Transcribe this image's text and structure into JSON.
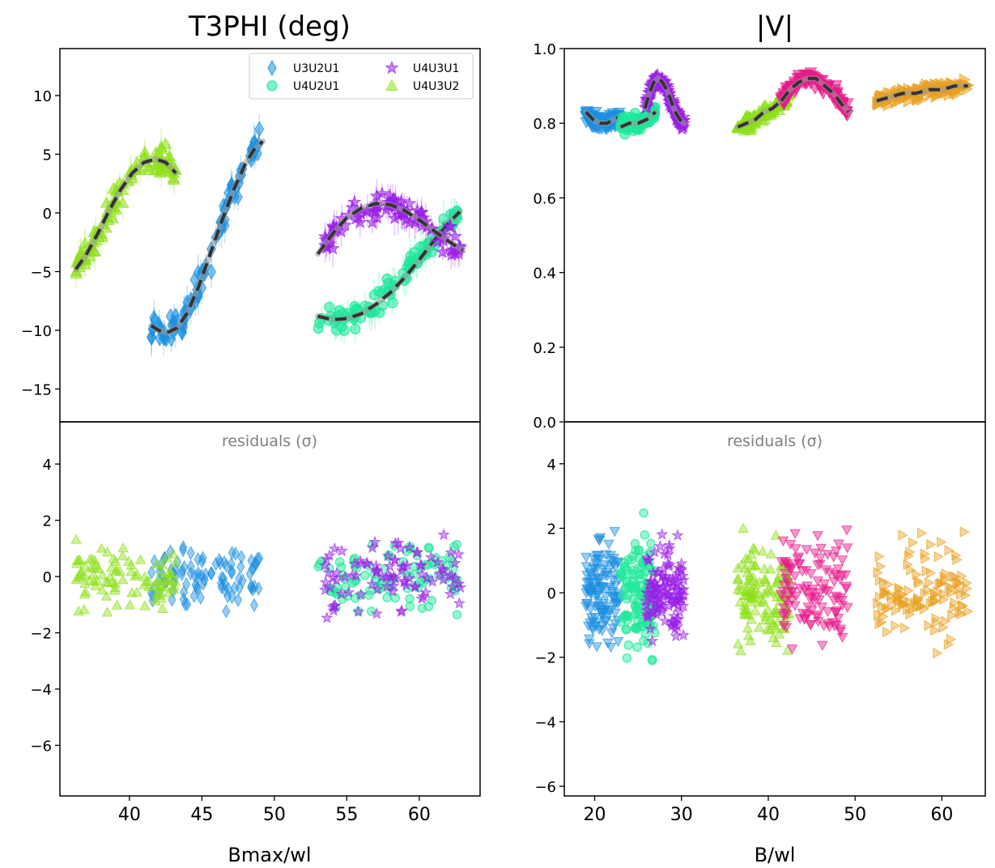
{
  "chart_data": [
    {
      "type": "scatter",
      "title": "T3PHI (deg)",
      "xlabel": "Bmax/wl",
      "ylabel": "",
      "xlim": [
        35.2,
        64.2
      ],
      "ylim": [
        -17.8,
        14.0
      ],
      "y_ticks": [
        "10",
        "5",
        "0",
        "−5",
        "−10",
        "−15"
      ],
      "legend_position": "top-right",
      "grid": false,
      "series": [
        {
          "name": "U3U2U1",
          "marker": "diamond",
          "color": "#1b8fe0",
          "x": [
            42.5,
            44.0,
            45.5,
            47.0,
            48.5,
            49.2
          ],
          "y": [
            -9.0,
            -9.0,
            -3.0,
            2.0,
            5.0,
            6.0
          ],
          "model_x": [
            41.5,
            42.0,
            42.6,
            43.3,
            44.0,
            44.8,
            45.6,
            46.4,
            47.2,
            48.0,
            48.6,
            49.2
          ],
          "model_y": [
            -9.6,
            -10.0,
            -10.2,
            -9.8,
            -8.5,
            -6.2,
            -3.4,
            -0.6,
            2.0,
            4.2,
            5.4,
            6.1
          ]
        },
        {
          "name": "U4U2U1",
          "marker": "circle",
          "color": "#1ee89a",
          "x": [
            53.0,
            55.0,
            57.0,
            59.0,
            61.0,
            62.8
          ],
          "y": [
            -9.0,
            -9.5,
            -8.0,
            -6.0,
            -2.0,
            0.0
          ],
          "model_x": [
            53.0,
            54.0,
            55.0,
            56.0,
            57.0,
            58.0,
            59.0,
            60.0,
            61.0,
            62.0,
            62.8
          ],
          "model_y": [
            -8.8,
            -9.1,
            -9.0,
            -8.6,
            -7.8,
            -6.8,
            -5.5,
            -4.0,
            -2.4,
            -0.9,
            0.1
          ]
        },
        {
          "name": "U4U3U1",
          "marker": "star",
          "color": "#9a1fe6",
          "x": [
            53.0,
            55.0,
            57.0,
            59.0,
            61.0,
            63.0
          ],
          "y": [
            -4.0,
            -1.0,
            1.0,
            0.0,
            -2.0,
            -3.0
          ],
          "model_x": [
            53.0,
            54.0,
            55.0,
            56.0,
            57.0,
            58.0,
            59.0,
            60.0,
            61.0,
            62.0,
            63.0
          ],
          "model_y": [
            -3.5,
            -1.8,
            -0.4,
            0.4,
            0.8,
            0.7,
            0.2,
            -0.6,
            -1.5,
            -2.4,
            -3.2
          ]
        },
        {
          "name": "U4U3U2",
          "marker": "triangle-up",
          "color": "#8fe01a",
          "x": [
            36.5,
            38.0,
            39.5,
            41.0,
            42.5,
            43.5
          ],
          "y": [
            -5.0,
            -1.0,
            3.0,
            4.5,
            4.0,
            3.5
          ],
          "model_x": [
            36.3,
            37.0,
            37.8,
            38.6,
            39.4,
            40.2,
            41.0,
            41.8,
            42.5,
            43.2
          ],
          "model_y": [
            -4.8,
            -3.6,
            -1.8,
            0.2,
            2.0,
            3.4,
            4.3,
            4.6,
            4.3,
            3.4
          ]
        }
      ],
      "residuals": {
        "label": "residuals (σ)",
        "ylim": [
          -7.8,
          5.5
        ],
        "y_ticks": [
          "4",
          "2",
          "0",
          "−2",
          "−4",
          "−6"
        ],
        "x_ticks": [
          "40",
          "45",
          "50",
          "55",
          "60"
        ]
      }
    },
    {
      "type": "scatter",
      "title": "|V|",
      "xlabel": "B/wl",
      "ylabel": "",
      "xlim": [
        16.5,
        65.0
      ],
      "ylim": [
        0.0,
        1.0
      ],
      "y_ticks": [
        "1.0",
        "0.8",
        "0.6",
        "0.4",
        "0.2",
        "0.0"
      ],
      "grid": false,
      "series": [
        {
          "marker": "triangle-down",
          "color": "#1b8fe0",
          "x": [
            19.0,
            20.5,
            22.0,
            23.0
          ],
          "y": [
            0.82,
            0.8,
            0.78,
            0.76
          ],
          "model_x": [
            19.0,
            19.8,
            20.6,
            21.4,
            22.2,
            23.0
          ],
          "model_y": [
            0.83,
            0.81,
            0.8,
            0.8,
            0.81,
            0.82
          ]
        },
        {
          "marker": "circle",
          "color": "#1ee89a",
          "x": [
            23.0,
            24.5,
            26.0,
            27.0
          ],
          "y": [
            0.79,
            0.8,
            0.8,
            0.81
          ],
          "model_x": [
            23.0,
            24.0,
            25.0,
            26.0,
            27.0
          ],
          "model_y": [
            0.79,
            0.8,
            0.8,
            0.81,
            0.83
          ]
        },
        {
          "marker": "star",
          "color": "#9a1fe6",
          "x": [
            26.0,
            27.0,
            28.5,
            30.0
          ],
          "y": [
            0.88,
            0.9,
            0.85,
            0.8
          ],
          "model_x": [
            25.8,
            26.3,
            26.8,
            27.3,
            27.8,
            28.3,
            28.8,
            29.3,
            29.8,
            30.3
          ],
          "model_y": [
            0.84,
            0.88,
            0.91,
            0.92,
            0.91,
            0.89,
            0.86,
            0.83,
            0.81,
            0.8
          ]
        },
        {
          "marker": "triangle-up",
          "color": "#8fe01a",
          "x": [
            36.5,
            38.5,
            40.5,
            42.5
          ],
          "y": [
            0.76,
            0.79,
            0.83,
            0.86
          ],
          "model_x": [
            36.5,
            37.5,
            38.5,
            39.5,
            40.5,
            41.5,
            42.5
          ],
          "model_y": [
            0.79,
            0.8,
            0.81,
            0.83,
            0.84,
            0.86,
            0.88
          ]
        },
        {
          "marker": "triangle-down",
          "color": "#e8198a",
          "x": [
            41.5,
            43.5,
            45.5,
            47.5,
            49.0
          ],
          "y": [
            0.85,
            0.9,
            0.92,
            0.88,
            0.82
          ],
          "model_x": [
            41.5,
            42.5,
            43.5,
            44.5,
            45.5,
            46.5,
            47.5,
            48.5,
            49.2
          ],
          "model_y": [
            0.86,
            0.89,
            0.91,
            0.92,
            0.92,
            0.9,
            0.88,
            0.85,
            0.83
          ]
        },
        {
          "marker": "triangle-right",
          "color": "#e8a020",
          "x": [
            53.0,
            56.0,
            59.0,
            62.0
          ],
          "y": [
            0.86,
            0.87,
            0.88,
            0.89
          ],
          "model_x": [
            52.5,
            54.0,
            55.5,
            57.0,
            58.5,
            60.0,
            61.5,
            63.0
          ],
          "model_y": [
            0.86,
            0.87,
            0.88,
            0.88,
            0.89,
            0.89,
            0.9,
            0.9
          ]
        }
      ],
      "residuals": {
        "label": "residuals (σ)",
        "ylim": [
          -6.3,
          5.3
        ],
        "y_ticks": [
          "4",
          "2",
          "0",
          "−2",
          "−4",
          "−6"
        ],
        "x_ticks": [
          "20",
          "30",
          "40",
          "50",
          "60"
        ]
      }
    }
  ]
}
